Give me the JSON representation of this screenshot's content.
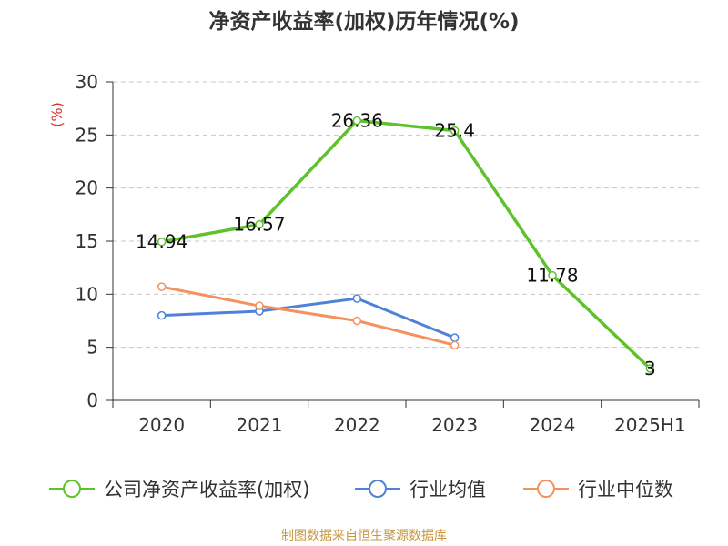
{
  "title": "净资产收益率(加权)历年情况(%)",
  "source": "制图数据来自恒生聚源数据库",
  "colors": {
    "company": "#5ec22b",
    "avg": "#4e82d9",
    "median": "#f5915e",
    "title": "#333333",
    "unit": "#e03030",
    "source": "#c8963c",
    "grid": "#c8c8c8",
    "axis": "#333333"
  },
  "chart_data": {
    "type": "line",
    "title": "净资产收益率(加权)历年情况(%)",
    "ylabel": "(%)",
    "xlabel": "",
    "categories": [
      "2020",
      "2021",
      "2022",
      "2023",
      "2024",
      "2025H1"
    ],
    "ylim": [
      0,
      30
    ],
    "yticks": [
      0,
      5,
      10,
      15,
      20,
      25,
      30
    ],
    "grid": true,
    "legend_position": "bottom",
    "series": [
      {
        "name": "公司净资产收益率(加权)",
        "values": [
          14.94,
          16.57,
          26.36,
          25.4,
          11.78,
          3
        ],
        "labels": [
          "14.94",
          "16.57",
          "26.36",
          "25.4",
          "11.78",
          "3"
        ]
      },
      {
        "name": "行业均值",
        "values": [
          8.0,
          8.4,
          9.6,
          5.9,
          null,
          null
        ]
      },
      {
        "name": "行业中位数",
        "values": [
          10.7,
          8.9,
          7.5,
          5.2,
          null,
          null
        ]
      }
    ]
  }
}
